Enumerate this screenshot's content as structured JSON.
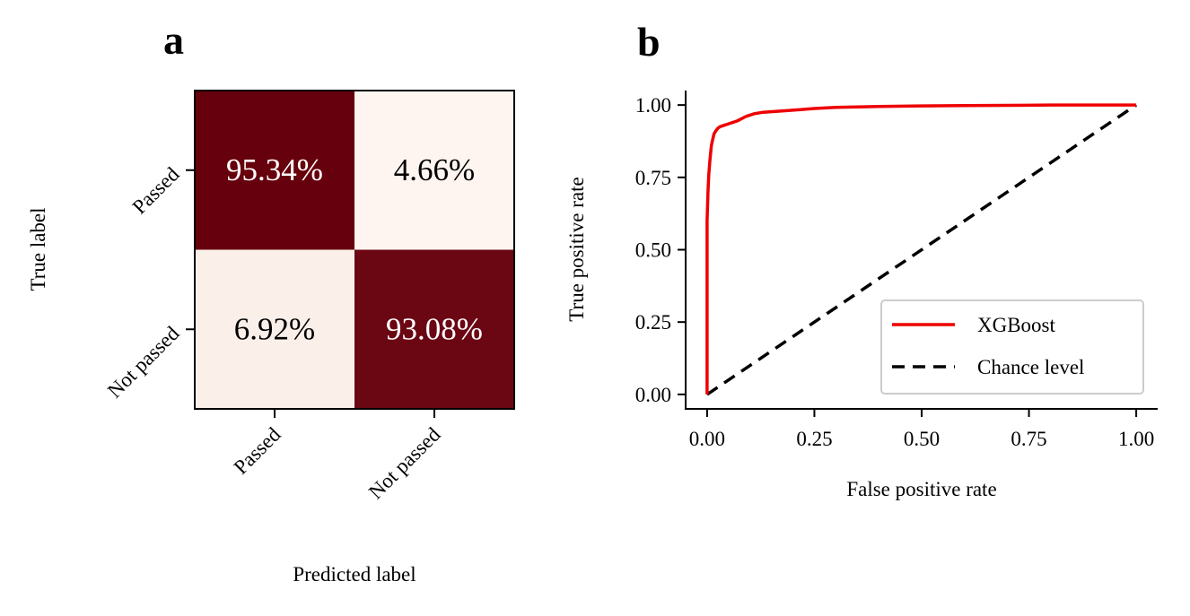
{
  "chart_data": [
    {
      "panel": "a",
      "type": "heatmap",
      "xlabel": "Predicted label",
      "ylabel": "True label",
      "x_categories": [
        "Passed",
        "Not passed"
      ],
      "y_categories": [
        "Passed",
        "Not passed"
      ],
      "values": [
        [
          95.34,
          4.66
        ],
        [
          6.92,
          93.08
        ]
      ],
      "cell_labels": [
        [
          "95.34%",
          "4.66%"
        ],
        [
          "6.92%",
          "93.08%"
        ]
      ],
      "colormap": {
        "low": "#fff5f0",
        "high": "#67000d"
      }
    },
    {
      "panel": "b",
      "type": "line",
      "xlabel": "False positive rate",
      "ylabel": "True positive rate",
      "xlim": [
        -0.05,
        1.05
      ],
      "ylim": [
        -0.05,
        1.05
      ],
      "x_ticks": [
        "0.00",
        "0.25",
        "0.50",
        "0.75",
        "1.00"
      ],
      "y_ticks": [
        "0.00",
        "0.25",
        "0.50",
        "0.75",
        "1.00"
      ],
      "legend_position": "lower-right",
      "series": [
        {
          "name": "XGBoost",
          "color": "#ee0000",
          "style": "solid",
          "x": [
            0.0,
            0.0,
            0.002,
            0.004,
            0.006,
            0.008,
            0.01,
            0.013,
            0.016,
            0.02,
            0.025,
            0.03,
            0.04,
            0.05,
            0.07,
            0.09,
            0.11,
            0.13,
            0.16,
            0.2,
            0.25,
            0.3,
            0.4,
            0.5,
            0.6,
            0.7,
            0.8,
            0.9,
            1.0
          ],
          "y": [
            0.0,
            0.6,
            0.7,
            0.76,
            0.8,
            0.83,
            0.86,
            0.88,
            0.9,
            0.91,
            0.92,
            0.925,
            0.93,
            0.935,
            0.945,
            0.96,
            0.97,
            0.975,
            0.978,
            0.982,
            0.988,
            0.992,
            0.995,
            0.997,
            0.998,
            0.999,
            1.0,
            1.0,
            1.0
          ]
        },
        {
          "name": "Chance level",
          "color": "#000000",
          "style": "dashed",
          "x": [
            0,
            1
          ],
          "y": [
            0,
            1
          ]
        }
      ]
    }
  ],
  "panel_labels": {
    "a": "a",
    "b": "b"
  }
}
